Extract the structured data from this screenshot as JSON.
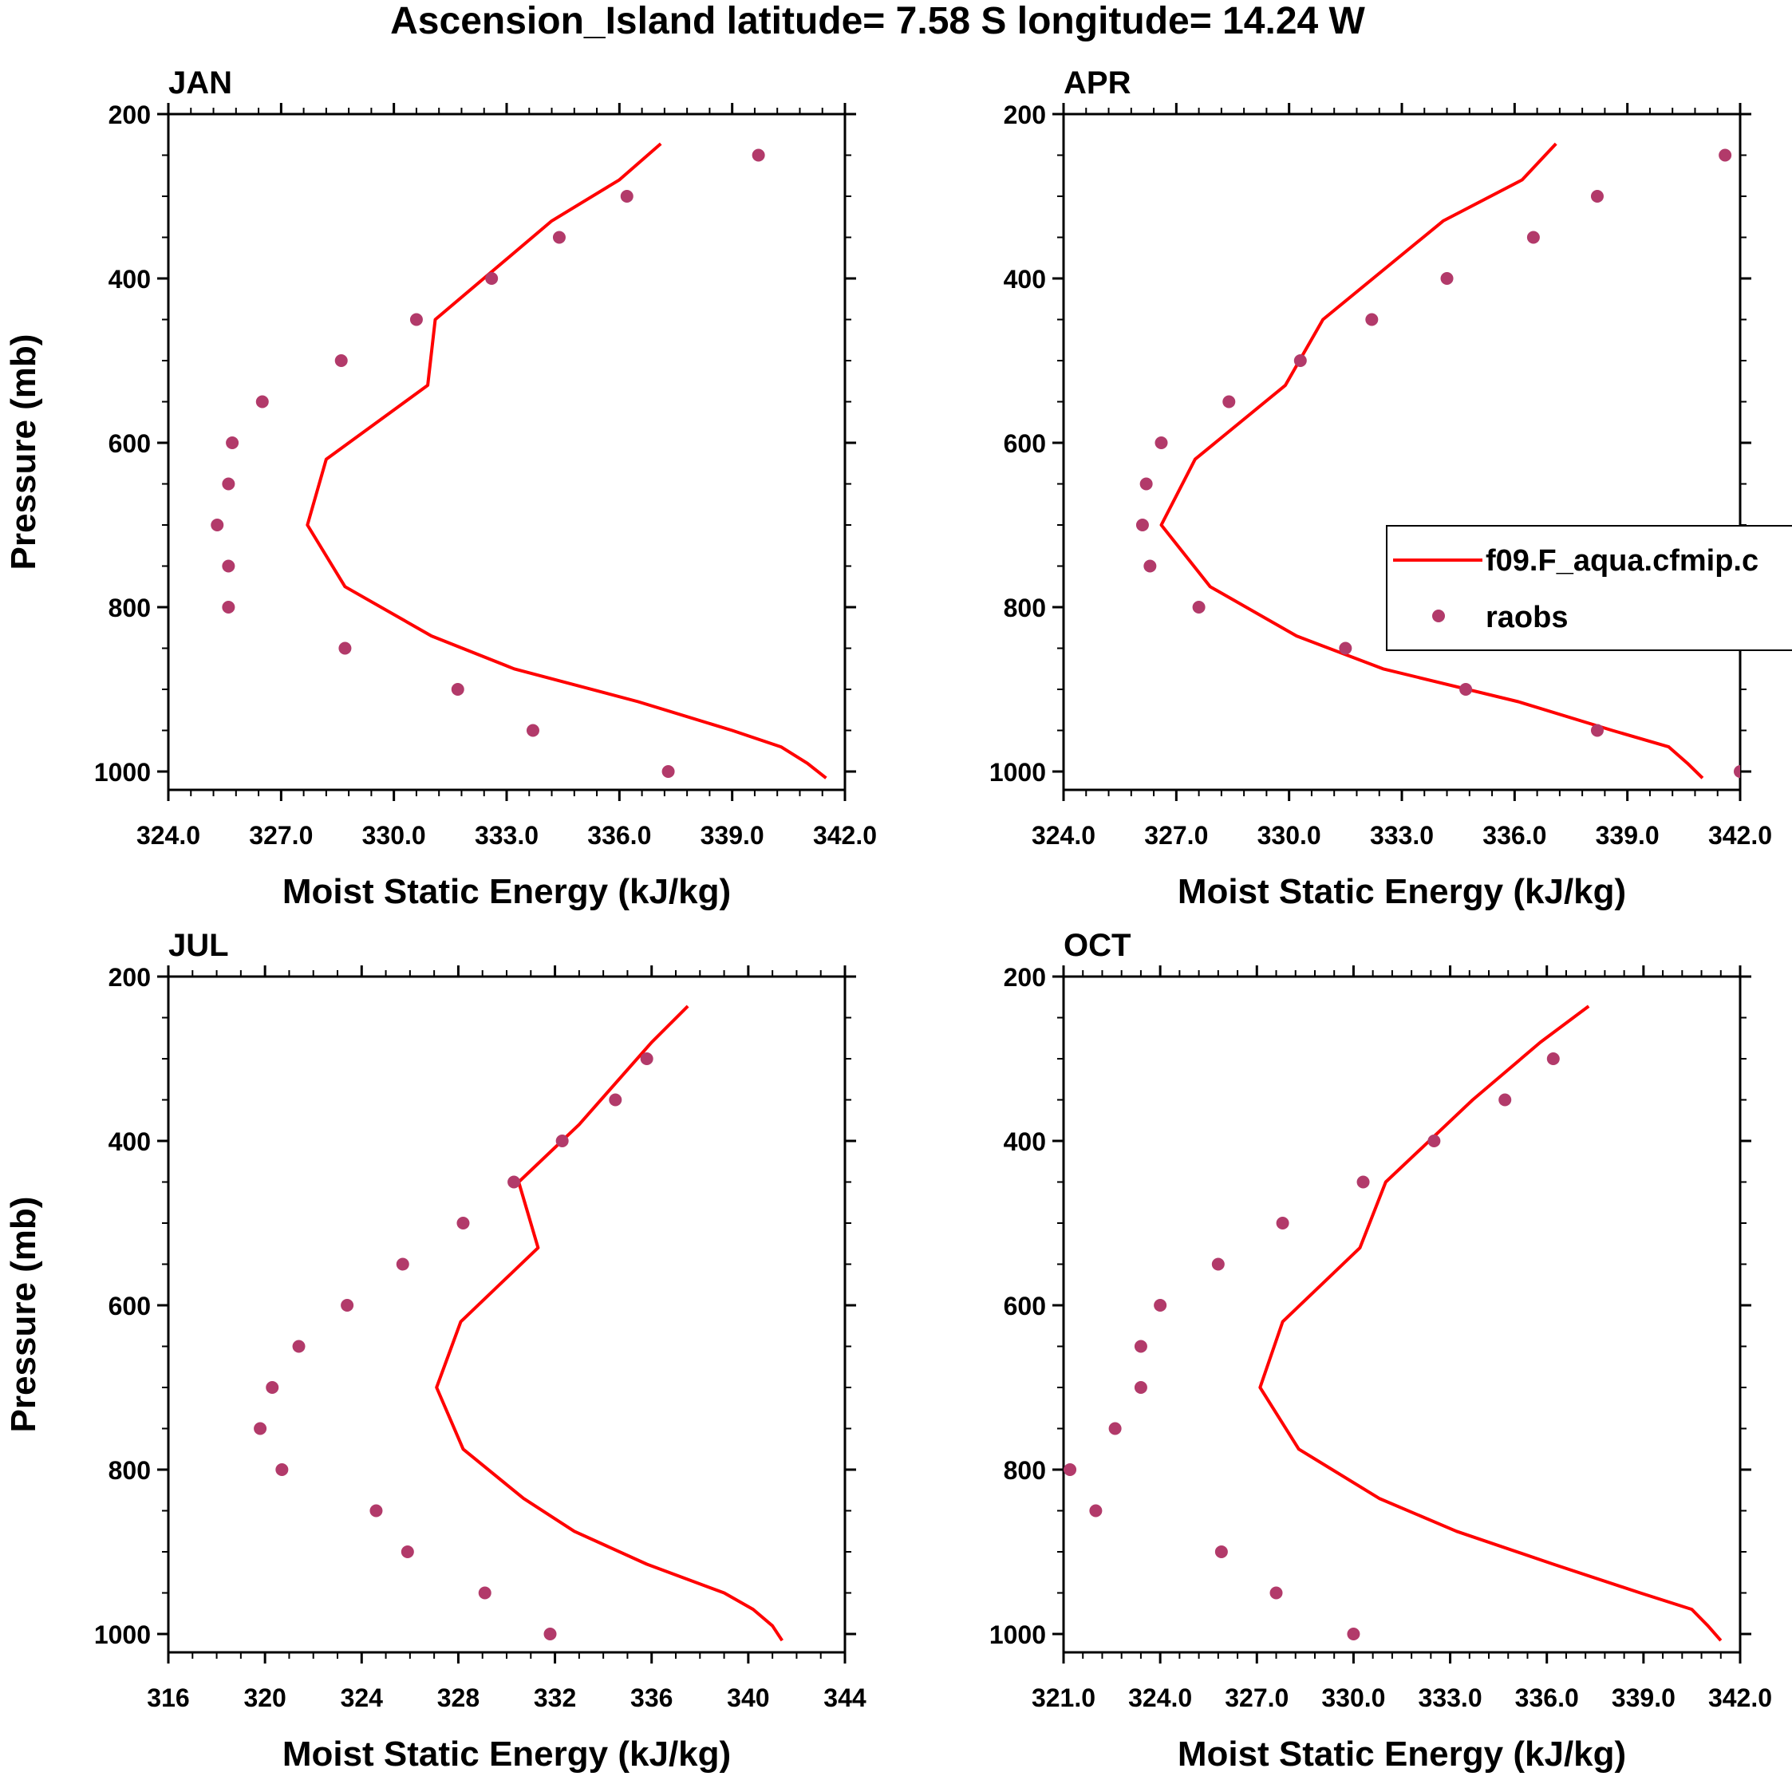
{
  "figure_title": "Ascension_Island  latitude= 7.58 S longitude= 14.24 W",
  "chart_data": [
    {
      "type": "line",
      "panel": "JAN",
      "xlabel": "Moist Static Energy (kJ/kg)",
      "ylabel": "Pressure (mb)",
      "xlim": [
        324,
        342
      ],
      "ylim": [
        1025,
        200
      ],
      "xticks": [
        324,
        327,
        330,
        333,
        336,
        339,
        342
      ],
      "xtick_labels": [
        "324.0",
        "327.0",
        "330.0",
        "333.0",
        "336.0",
        "339.0",
        "342.0"
      ],
      "x_minor_step": 0.6,
      "yticks": [
        200,
        400,
        600,
        800,
        1000
      ],
      "ytick_labels": [
        "200",
        "400",
        "600",
        "800",
        "1000"
      ],
      "y_minor_step": 50,
      "series": [
        {
          "name": "f09.F_aqua.cfmip.c",
          "style": "line",
          "color": "#ff0000",
          "x": [
            337.1,
            336.0,
            334.2,
            331.1,
            330.9,
            328.2,
            327.7,
            328.7,
            331.0,
            333.2,
            336.5,
            339.0,
            340.3,
            341.0,
            341.5
          ],
          "y": [
            236,
            280,
            330,
            450,
            530,
            620,
            700,
            775,
            835,
            875,
            915,
            950,
            970,
            990,
            1008
          ]
        },
        {
          "name": "raobs",
          "style": "marker",
          "color": "#b23a6a",
          "x": [
            339.7,
            336.2,
            334.4,
            332.6,
            330.6,
            328.6,
            326.5,
            325.7,
            325.6,
            325.3,
            325.6,
            325.6,
            328.7,
            331.7,
            333.7,
            337.3
          ],
          "y": [
            250,
            300,
            350,
            400,
            450,
            500,
            550,
            600,
            650,
            700,
            750,
            800,
            850,
            900,
            950,
            1000
          ]
        }
      ]
    },
    {
      "type": "line",
      "panel": "APR",
      "xlabel": "Moist Static Energy (kJ/kg)",
      "ylabel": "",
      "xlim": [
        324,
        342
      ],
      "ylim": [
        1025,
        200
      ],
      "xticks": [
        324,
        327,
        330,
        333,
        336,
        339,
        342
      ],
      "xtick_labels": [
        "324.0",
        "327.0",
        "330.0",
        "333.0",
        "336.0",
        "339.0",
        "342.0"
      ],
      "x_minor_step": 0.6,
      "yticks": [
        200,
        400,
        600,
        800,
        1000
      ],
      "ytick_labels": [
        "200",
        "400",
        "600",
        "800",
        "1000"
      ],
      "y_minor_step": 50,
      "legend": {
        "position": "right",
        "entries": [
          "f09.F_aqua.cfmip.c",
          "raobs"
        ]
      },
      "series": [
        {
          "name": "f09.F_aqua.cfmip.c",
          "style": "line",
          "color": "#ff0000",
          "x": [
            337.1,
            336.2,
            334.1,
            330.9,
            329.9,
            327.5,
            326.6,
            327.9,
            330.2,
            332.5,
            336.1,
            338.6,
            340.1,
            340.6,
            341.0
          ],
          "y": [
            236,
            280,
            330,
            450,
            530,
            620,
            700,
            775,
            835,
            875,
            915,
            950,
            970,
            990,
            1008
          ]
        },
        {
          "name": "raobs",
          "style": "marker",
          "color": "#b23a6a",
          "x": [
            341.6,
            338.2,
            336.5,
            334.2,
            332.2,
            330.3,
            328.4,
            326.6,
            326.2,
            326.1,
            326.3,
            327.6,
            331.5,
            334.7,
            338.2,
            342.0
          ],
          "y": [
            250,
            300,
            350,
            400,
            450,
            500,
            550,
            600,
            650,
            700,
            750,
            800,
            850,
            900,
            950,
            1000
          ]
        }
      ]
    },
    {
      "type": "line",
      "panel": "JUL",
      "xlabel": "Moist Static Energy (kJ/kg)",
      "ylabel": "Pressure (mb)",
      "xlim": [
        316,
        344
      ],
      "ylim": [
        1025,
        200
      ],
      "xticks": [
        316,
        320,
        324,
        328,
        332,
        336,
        340,
        344
      ],
      "xtick_labels": [
        "316",
        "320",
        "324",
        "328",
        "332",
        "336",
        "340",
        "344"
      ],
      "x_minor_step": 1,
      "yticks": [
        200,
        400,
        600,
        800,
        1000
      ],
      "ytick_labels": [
        "200",
        "400",
        "600",
        "800",
        "1000"
      ],
      "y_minor_step": 50,
      "series": [
        {
          "name": "f09.F_aqua.cfmip.c",
          "style": "line",
          "color": "#ff0000",
          "x": [
            337.5,
            336.0,
            333.0,
            330.5,
            331.3,
            328.1,
            327.1,
            328.2,
            330.7,
            332.8,
            335.8,
            339.0,
            340.2,
            341.0,
            341.4
          ],
          "y": [
            236,
            280,
            380,
            450,
            530,
            620,
            700,
            775,
            835,
            875,
            915,
            950,
            970,
            990,
            1008
          ]
        },
        {
          "name": "raobs",
          "style": "marker",
          "color": "#b23a6a",
          "x": [
            335.8,
            334.5,
            332.3,
            330.3,
            328.2,
            325.7,
            323.4,
            321.4,
            320.3,
            319.8,
            320.7,
            324.6,
            325.9,
            329.1,
            331.8
          ],
          "y": [
            300,
            350,
            400,
            450,
            500,
            550,
            600,
            650,
            700,
            750,
            800,
            850,
            900,
            950,
            1000
          ]
        }
      ]
    },
    {
      "type": "line",
      "panel": "OCT",
      "xlabel": "Moist Static Energy (kJ/kg)",
      "ylabel": "",
      "xlim": [
        321,
        342
      ],
      "ylim": [
        1025,
        200
      ],
      "xticks": [
        321,
        324,
        327,
        330,
        333,
        336,
        339,
        342
      ],
      "xtick_labels": [
        "321.0",
        "324.0",
        "327.0",
        "330.0",
        "333.0",
        "336.0",
        "339.0",
        "342.0"
      ],
      "x_minor_step": 0.6,
      "yticks": [
        200,
        400,
        600,
        800,
        1000
      ],
      "ytick_labels": [
        "200",
        "400",
        "600",
        "800",
        "1000"
      ],
      "y_minor_step": 50,
      "series": [
        {
          "name": "f09.F_aqua.cfmip.c",
          "style": "line",
          "color": "#ff0000",
          "x": [
            337.3,
            335.8,
            333.7,
            331.0,
            330.2,
            327.8,
            327.1,
            328.3,
            330.8,
            333.2,
            336.2,
            338.9,
            340.5,
            341.0,
            341.4
          ],
          "y": [
            236,
            280,
            350,
            450,
            530,
            620,
            700,
            775,
            835,
            875,
            915,
            950,
            970,
            990,
            1008
          ]
        },
        {
          "name": "raobs",
          "style": "marker",
          "color": "#b23a6a",
          "x": [
            336.2,
            334.7,
            332.5,
            330.3,
            327.8,
            325.8,
            324.0,
            323.4,
            323.4,
            322.6,
            321.2,
            322.0,
            325.9,
            327.6,
            330.0
          ],
          "y": [
            300,
            350,
            400,
            450,
            500,
            550,
            600,
            650,
            700,
            750,
            800,
            850,
            900,
            950,
            1000
          ]
        }
      ]
    }
  ]
}
